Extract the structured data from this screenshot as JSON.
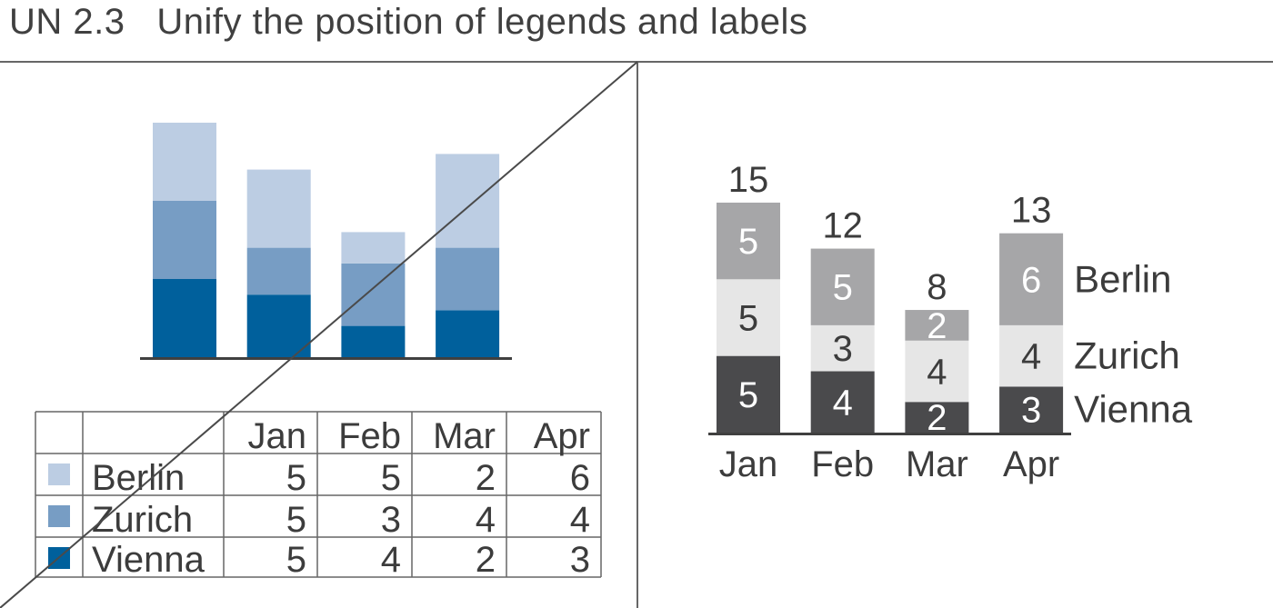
{
  "title": "UN 2.3   Unify the position of legends and labels",
  "colors": {
    "berlin_blue": "#bccde3",
    "zurich_blue": "#779dc4",
    "vienna_blue": "#00609c",
    "berlin_gray": "#a6a6a8",
    "zurich_gray": "#e6e6e6",
    "vienna_gray": "#4a4a4c",
    "axis": "#404040"
  },
  "chart_data": [
    {
      "type": "bar",
      "variant": "stacked",
      "panel": "left",
      "crossed_out": true,
      "categories": [
        "Jan",
        "Feb",
        "Mar",
        "Apr"
      ],
      "series": [
        {
          "name": "Berlin",
          "values": [
            5,
            5,
            2,
            6
          ],
          "color": "#bccde3"
        },
        {
          "name": "Zurich",
          "values": [
            5,
            3,
            4,
            4
          ],
          "color": "#779dc4"
        },
        {
          "name": "Vienna",
          "values": [
            5,
            4,
            2,
            3
          ],
          "color": "#00609c"
        }
      ],
      "ylim": [
        0,
        15
      ],
      "legend": "data-table-below",
      "table": {
        "header": [
          "",
          "",
          "Jan",
          "Feb",
          "Mar",
          "Apr"
        ],
        "rows": [
          {
            "name": "Berlin",
            "values": [
              "5",
              "5",
              "2",
              "6"
            ]
          },
          {
            "name": "Zurich",
            "values": [
              "5",
              "3",
              "4",
              "4"
            ]
          },
          {
            "name": "Vienna",
            "values": [
              "5",
              "4",
              "2",
              "3"
            ]
          }
        ]
      }
    },
    {
      "type": "bar",
      "variant": "stacked",
      "panel": "right",
      "crossed_out": false,
      "categories": [
        "Jan",
        "Feb",
        "Mar",
        "Apr"
      ],
      "series": [
        {
          "name": "Berlin",
          "values": [
            5,
            5,
            2,
            6
          ],
          "color": "#a6a6a8"
        },
        {
          "name": "Zurich",
          "values": [
            5,
            3,
            4,
            4
          ],
          "color": "#e6e6e6"
        },
        {
          "name": "Vienna",
          "values": [
            5,
            4,
            2,
            3
          ],
          "color": "#4a4a4c"
        }
      ],
      "totals": [
        "15",
        "12",
        "8",
        "13"
      ],
      "ylim": [
        0,
        15
      ],
      "legend": "inline-right-of-last-bar",
      "data_labels": true
    }
  ]
}
